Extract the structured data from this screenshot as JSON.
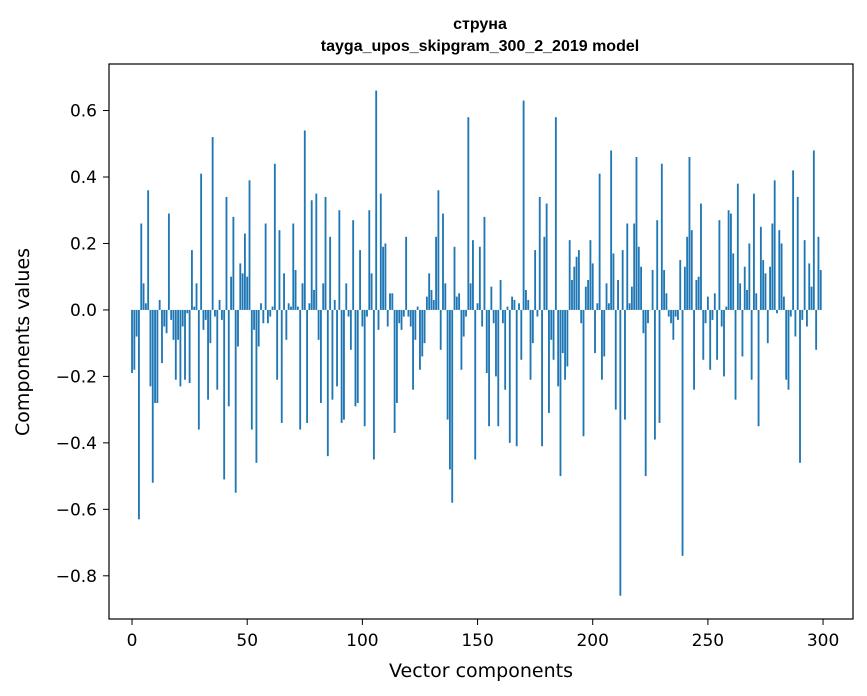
{
  "chart_data": {
    "type": "bar",
    "title": "струна",
    "subtitle": "tayga_upos_skipgram_300_2_2019 model",
    "xlabel": "Vector components",
    "ylabel": "Components values",
    "xlim": [
      -10,
      313
    ],
    "ylim": [
      -0.93,
      0.74
    ],
    "xticks": [
      0,
      50,
      100,
      150,
      200,
      250,
      300
    ],
    "xtick_labels": [
      "0",
      "50",
      "100",
      "150",
      "200",
      "250",
      "300"
    ],
    "yticks": [
      -0.8,
      -0.6,
      -0.4,
      -0.2,
      0.0,
      0.2,
      0.4,
      0.6
    ],
    "ytick_labels": [
      "−0.8",
      "−0.6",
      "−0.4",
      "−0.2",
      "0.0",
      "0.2",
      "0.4",
      "0.6"
    ],
    "bar_color": "#1f77b4",
    "x": "0..299 (component index)",
    "values": [
      -0.19,
      -0.18,
      -0.08,
      -0.63,
      0.26,
      0.08,
      0.02,
      0.36,
      -0.23,
      -0.52,
      -0.28,
      -0.28,
      0.03,
      -0.16,
      -0.05,
      -0.07,
      0.29,
      -0.03,
      -0.09,
      -0.21,
      -0.09,
      -0.23,
      -0.05,
      -0.21,
      -0.01,
      -0.22,
      0.18,
      0.01,
      0.08,
      -0.36,
      0.41,
      -0.06,
      -0.03,
      -0.27,
      -0.1,
      0.52,
      -0.02,
      -0.24,
      0.03,
      -0.03,
      -0.51,
      0.34,
      -0.29,
      0.1,
      0.28,
      -0.55,
      -0.11,
      0.14,
      0.11,
      0.23,
      0.1,
      0.39,
      -0.36,
      -0.06,
      -0.46,
      -0.11,
      0.02,
      -0.04,
      0.26,
      -0.04,
      -0.02,
      0.01,
      0.44,
      -0.21,
      0.24,
      -0.34,
      0.11,
      -0.09,
      0.02,
      0.01,
      0.26,
      0.12,
      0.01,
      -0.36,
      0.08,
      0.54,
      -0.34,
      0.02,
      0.33,
      0.06,
      0.35,
      -0.09,
      -0.28,
      0.08,
      0.34,
      -0.44,
      0.22,
      -0.27,
      0.03,
      -0.23,
      0.3,
      -0.34,
      -0.33,
      0.08,
      -0.02,
      -0.12,
      0.27,
      -0.29,
      -0.28,
      0.18,
      -0.05,
      -0.35,
      -0.02,
      0.3,
      0.11,
      -0.45,
      0.66,
      -0.06,
      0.35,
      0.19,
      0.2,
      -0.05,
      0.05,
      0.05,
      -0.37,
      -0.28,
      -0.04,
      -0.06,
      -0.02,
      0.22,
      -0.02,
      -0.05,
      -0.24,
      -0.09,
      0.01,
      -0.18,
      -0.14,
      -0.1,
      0.04,
      0.11,
      0.06,
      0.03,
      0.22,
      0.36,
      -0.12,
      0.29,
      0.08,
      -0.33,
      -0.48,
      -0.58,
      0.19,
      0.04,
      0.05,
      -0.18,
      -0.08,
      -0.02,
      0.58,
      0.08,
      0.21,
      -0.45,
      0.02,
      0.19,
      -0.05,
      0.28,
      -0.19,
      -0.35,
      0.07,
      -0.04,
      -0.2,
      -0.35,
      0.09,
      -0.04,
      -0.24,
      0.01,
      -0.4,
      0.04,
      0.03,
      -0.41,
      0.02,
      -0.15,
      0.63,
      0.06,
      0.03,
      -0.21,
      -0.1,
      0.18,
      -0.02,
      0.34,
      -0.41,
      0.22,
      0.32,
      -0.31,
      -0.09,
      -0.15,
      0.58,
      -0.23,
      -0.5,
      -0.13,
      -0.21,
      -0.17,
      0.21,
      0.09,
      0.13,
      0.16,
      0.18,
      -0.04,
      -0.38,
      0.07,
      0.09,
      0.21,
      0.14,
      -0.13,
      0.02,
      0.41,
      -0.21,
      -0.14,
      0.08,
      0.02,
      0.48,
      0.17,
      -0.3,
      0.09,
      -0.86,
      0.18,
      -0.33,
      0.26,
      0.02,
      0.07,
      0.26,
      0.46,
      0.19,
      0.13,
      -0.07,
      -0.5,
      -0.04,
      0.0,
      0.12,
      -0.39,
      0.27,
      -0.34,
      0.44,
      0.12,
      0.05,
      -0.02,
      -0.04,
      -0.09,
      -0.02,
      -0.03,
      0.15,
      -0.74,
      0.13,
      0.22,
      0.46,
      0.24,
      -0.24,
      0.09,
      0.1,
      0.32,
      -0.15,
      -0.04,
      0.04,
      -0.18,
      -0.03,
      0.05,
      -0.15,
      0.27,
      -0.05,
      -0.2,
      0.01,
      0.3,
      0.29,
      0.17,
      -0.27,
      0.38,
      0.08,
      -0.14,
      0.13,
      0.06,
      0.2,
      -0.21,
      0.35,
      0.05,
      -0.35,
      0.25,
      0.15,
      0.11,
      -0.1,
      0.13,
      0.26,
      0.39,
      -0.01,
      0.24,
      0.2,
      0.04,
      -0.21,
      -0.24,
      -0.02,
      0.42,
      -0.08,
      0.34,
      -0.46,
      -0.03,
      0.21,
      -0.05,
      0.14,
      0.07,
      0.48,
      -0.12,
      0.22,
      0.12
    ]
  }
}
